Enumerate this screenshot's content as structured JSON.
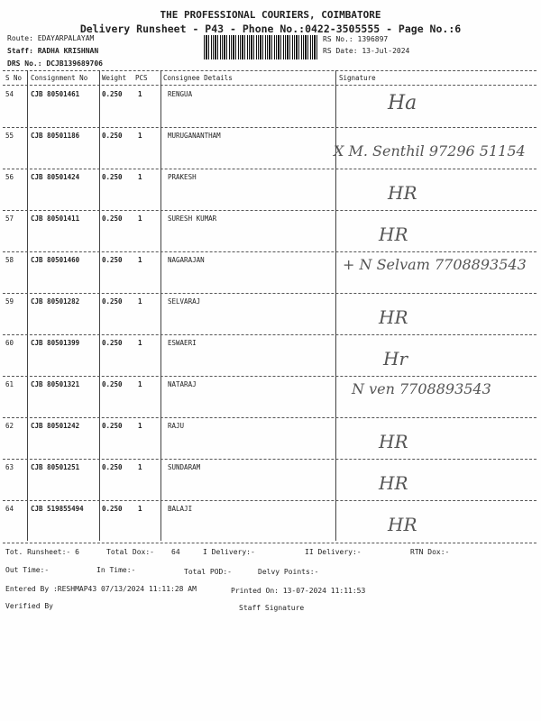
{
  "header": {
    "company": "THE PROFESSIONAL COURIERS, COIMBATORE",
    "subtitle": "Delivery Runsheet - P43 - Phone No.:0422-3505555 - Page No.:6",
    "route": "Route: EDAYARPALAYAM",
    "staff": "Staff: RADHA KRISHNAN",
    "drs": "DRS No.: DCJB139689706",
    "rs_no": "RS No.: 1396897",
    "rs_date": "RS Date: 13-Jul-2024"
  },
  "columns": [
    "S No",
    "Consignment No",
    "Weight",
    "PCS",
    "Consignee Details",
    "Signature"
  ],
  "rows": [
    {
      "sno": "54",
      "cn": "CJB 80501461",
      "weight": "0.250",
      "pcs": "1",
      "name": "RENGUA",
      "sig": "Ha"
    },
    {
      "sno": "55",
      "cn": "CJB 80501186",
      "weight": "0.250",
      "pcs": "1",
      "name": "MURUGANANTHAM",
      "sig": "X M. Senthil 97296 51154"
    },
    {
      "sno": "56",
      "cn": "CJB 80501424",
      "weight": "0.250",
      "pcs": "1",
      "name": "PRAKESH",
      "sig": "HR"
    },
    {
      "sno": "57",
      "cn": "CJB 80501411",
      "weight": "0.250",
      "pcs": "1",
      "name": "SURESH KUMAR",
      "sig": "HR"
    },
    {
      "sno": "58",
      "cn": "CJB 80501460",
      "weight": "0.250",
      "pcs": "1",
      "name": "NAGARAJAN",
      "sig": "+ N Selvam 7708893543"
    },
    {
      "sno": "59",
      "cn": "CJB 80501282",
      "weight": "0.250",
      "pcs": "1",
      "name": "SELVARAJ",
      "sig": "HR"
    },
    {
      "sno": "60",
      "cn": "CJB 80501399",
      "weight": "0.250",
      "pcs": "1",
      "name": "ESWAERI",
      "sig": "Hr"
    },
    {
      "sno": "61",
      "cn": "CJB 80501321",
      "weight": "0.250",
      "pcs": "1",
      "name": "NATARAJ",
      "sig": "N ven 7708893543"
    },
    {
      "sno": "62",
      "cn": "CJB 80501242",
      "weight": "0.250",
      "pcs": "1",
      "name": "RAJU",
      "sig": "HR"
    },
    {
      "sno": "63",
      "cn": "CJB 80501251",
      "weight": "0.250",
      "pcs": "1",
      "name": "SUNDARAM",
      "sig": "HR"
    },
    {
      "sno": "64",
      "cn": "CJB 519855494",
      "weight": "0.250",
      "pcs": "1",
      "name": "BALAJI",
      "sig": "HR"
    }
  ],
  "footer": {
    "tot_runsheet": "Tot. Runsheet:- 6",
    "total_dox": "Total Dox:-",
    "total_dox_val": "64",
    "i_delivery": "I Delivery:-",
    "ii_delivery": "II Delivery:-",
    "rtn_dox": "RTN Dox:-",
    "out_time": "Out Time:-",
    "in_time": "In Time:-",
    "total_pod": "Total POD:-",
    "delvy_points": "Delvy Points:-",
    "entered_by": "Entered By :RESHMAP43 07/13/2024 11:11:28 AM",
    "printed_on": "Printed On: 13-07-2024 11:11:53",
    "verified_by": "Verified By",
    "staff_signature": "Staff Signature"
  }
}
